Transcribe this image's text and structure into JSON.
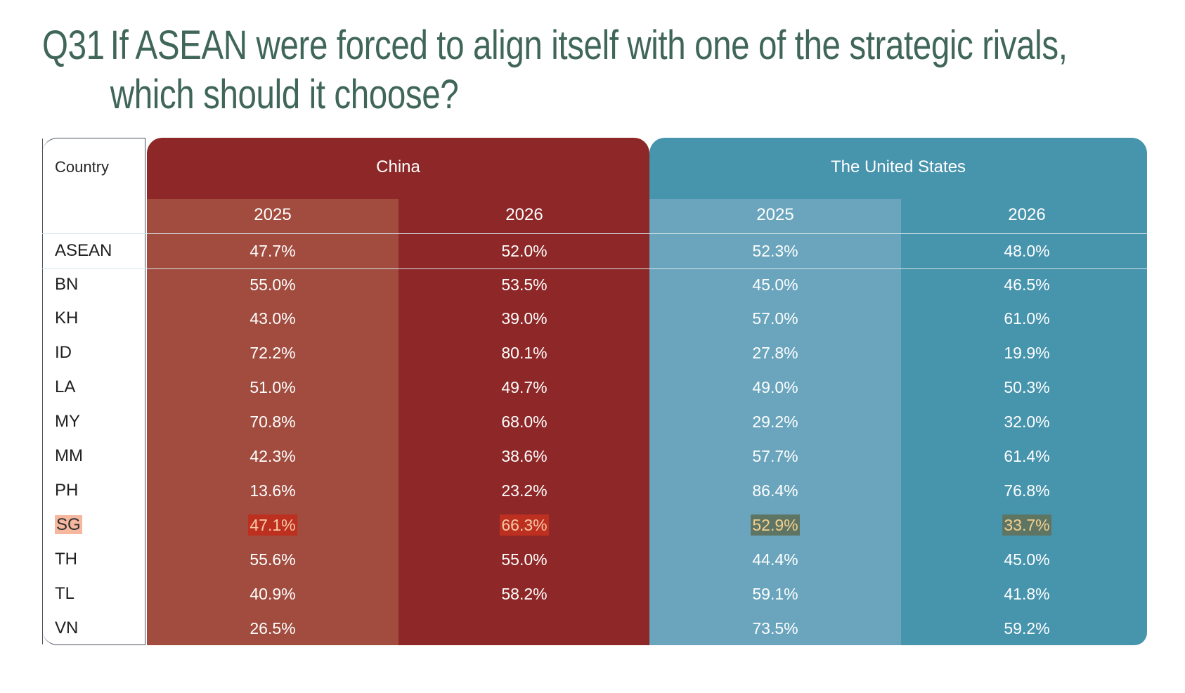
{
  "title": {
    "question_number": "Q31",
    "question_text": "If ASEAN were forced to align itself with one of the strategic rivals, which should it choose?"
  },
  "table": {
    "country_header": "Country",
    "groups": [
      {
        "label": "China",
        "years": [
          "2025",
          "2026"
        ]
      },
      {
        "label": "The United States",
        "years": [
          "2025",
          "2026"
        ]
      }
    ],
    "rows": [
      {
        "country": "ASEAN",
        "values": [
          "47.7%",
          "52.0%",
          "52.3%",
          "48.0%"
        ]
      },
      {
        "country": "BN",
        "values": [
          "55.0%",
          "53.5%",
          "45.0%",
          "46.5%"
        ]
      },
      {
        "country": "KH",
        "values": [
          "43.0%",
          "39.0%",
          "57.0%",
          "61.0%"
        ]
      },
      {
        "country": "ID",
        "values": [
          "72.2%",
          "80.1%",
          "27.8%",
          "19.9%"
        ]
      },
      {
        "country": "LA",
        "values": [
          "51.0%",
          "49.7%",
          "49.0%",
          "50.3%"
        ]
      },
      {
        "country": "MY",
        "values": [
          "70.8%",
          "68.0%",
          "29.2%",
          "32.0%"
        ]
      },
      {
        "country": "MM",
        "values": [
          "42.3%",
          "38.6%",
          "57.7%",
          "61.4%"
        ]
      },
      {
        "country": "PH",
        "values": [
          "13.6%",
          "23.2%",
          "86.4%",
          "76.8%"
        ]
      },
      {
        "country": "SG",
        "values": [
          "47.1%",
          "66.3%",
          "52.9%",
          "33.7%"
        ]
      },
      {
        "country": "TH",
        "values": [
          "55.6%",
          "55.0%",
          "44.4%",
          "45.0%"
        ]
      },
      {
        "country": "TL",
        "values": [
          "40.9%",
          "58.2%",
          "59.1%",
          "41.8%"
        ]
      },
      {
        "country": "VN",
        "values": [
          "26.5%",
          "",
          "73.5%",
          "59.2%"
        ]
      }
    ]
  },
  "colors": {
    "title": "#3f6659",
    "china_dark": "#8e2727",
    "china_light": "#a14c3e",
    "us_dark": "#4794ad",
    "us_light": "#6aa5bd",
    "highlight_country": "#f5b79d"
  },
  "chart_data": {
    "type": "table",
    "title": "If ASEAN were forced to align itself with one of the strategic rivals, which should it choose?",
    "question_number": "Q31",
    "columns": [
      "China 2025",
      "China 2026",
      "The United States 2025",
      "The United States 2026"
    ],
    "categories": [
      "ASEAN",
      "BN",
      "KH",
      "ID",
      "LA",
      "MY",
      "MM",
      "PH",
      "SG",
      "TH",
      "TL",
      "VN"
    ],
    "series": [
      {
        "name": "China 2025",
        "values": [
          47.7,
          55.0,
          43.0,
          72.2,
          51.0,
          70.8,
          42.3,
          13.6,
          47.1,
          55.6,
          40.9,
          26.5
        ]
      },
      {
        "name": "China 2026",
        "values": [
          52.0,
          53.5,
          39.0,
          80.1,
          49.7,
          68.0,
          38.6,
          23.2,
          66.3,
          55.0,
          58.2,
          null
        ]
      },
      {
        "name": "The United States 2025",
        "values": [
          52.3,
          45.0,
          57.0,
          27.8,
          49.0,
          29.2,
          57.7,
          86.4,
          52.9,
          44.4,
          59.1,
          73.5
        ]
      },
      {
        "name": "The United States 2026",
        "values": [
          48.0,
          46.5,
          61.0,
          19.9,
          50.3,
          32.0,
          61.4,
          76.8,
          33.7,
          45.0,
          41.8,
          59.2
        ]
      }
    ]
  }
}
